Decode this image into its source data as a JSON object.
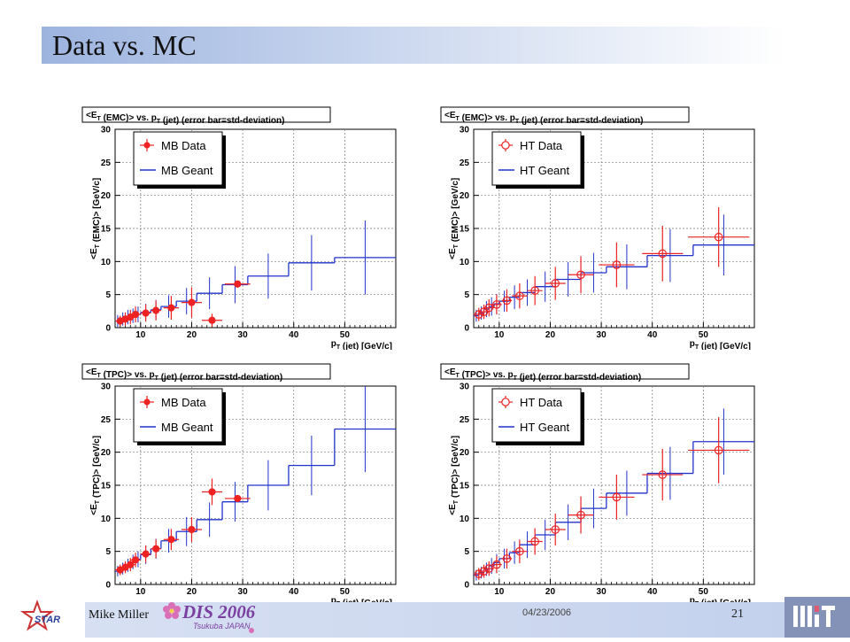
{
  "slide": {
    "title": "Data vs. MC",
    "author": "Mike Miller",
    "date": "04/23/2006",
    "page": "21",
    "conference_logo_text": "DIS 2006",
    "conference_logo_sub": "Tsukuba JAPAN",
    "star_logo_text": "STAR"
  },
  "colors": {
    "data": "#ee2222",
    "mc": "#2233cc",
    "grid": "#777777"
  },
  "chart_data": [
    {
      "type": "line",
      "title": "<E_T (EMC)> vs. p_T (jet) (error bar=std-deviation)",
      "ylabel": "<E_T (EMC)> [GeV/c]",
      "xlabel": "p_T (jet) [GeV/c]",
      "xlim": [
        5,
        60
      ],
      "ylim": [
        0,
        30
      ],
      "xticks": [
        10,
        20,
        30,
        40,
        50
      ],
      "yticks": [
        0,
        5,
        10,
        15,
        20,
        25,
        30
      ],
      "grid": true,
      "legend": "top-left",
      "series": [
        {
          "name": "MB Data",
          "kind": "points",
          "marker": "filled",
          "points": [
            {
              "x": 6,
              "y": 1.0,
              "ex": 1,
              "ey": 0.8
            },
            {
              "x": 7,
              "y": 1.3,
              "ex": 1,
              "ey": 1.0
            },
            {
              "x": 8,
              "y": 1.6,
              "ex": 1,
              "ey": 1.1
            },
            {
              "x": 9,
              "y": 2.0,
              "ex": 1,
              "ey": 1.2
            },
            {
              "x": 11,
              "y": 2.2,
              "ex": 1,
              "ey": 1.3
            },
            {
              "x": 13,
              "y": 2.6,
              "ex": 1,
              "ey": 1.5
            },
            {
              "x": 16,
              "y": 3.0,
              "ex": 1.5,
              "ey": 1.8
            },
            {
              "x": 20,
              "y": 3.8,
              "ex": 2,
              "ey": 2.3
            },
            {
              "x": 24,
              "y": 1.1,
              "ex": 2,
              "ey": 1.0
            },
            {
              "x": 29,
              "y": 6.6,
              "ex": 2.5,
              "ey": 0.4
            }
          ]
        },
        {
          "name": "MB Geant",
          "kind": "steps",
          "bins": [
            {
              "lo": 5,
              "hi": 6,
              "y": 1.0,
              "ey": 0.9
            },
            {
              "lo": 6,
              "hi": 7,
              "y": 1.3,
              "ey": 1.0
            },
            {
              "lo": 7,
              "hi": 8,
              "y": 1.6,
              "ey": 1.1
            },
            {
              "lo": 8,
              "hi": 9,
              "y": 1.8,
              "ey": 1.1
            },
            {
              "lo": 9,
              "hi": 10,
              "y": 2.0,
              "ey": 1.2
            },
            {
              "lo": 10,
              "hi": 12,
              "y": 2.3,
              "ey": 1.3
            },
            {
              "lo": 12,
              "hi": 14,
              "y": 2.7,
              "ey": 1.5
            },
            {
              "lo": 14,
              "hi": 17,
              "y": 3.2,
              "ey": 1.7
            },
            {
              "lo": 17,
              "hi": 21,
              "y": 4.0,
              "ey": 2.0
            },
            {
              "lo": 21,
              "hi": 26,
              "y": 5.2,
              "ey": 2.4
            },
            {
              "lo": 26,
              "hi": 31,
              "y": 6.5,
              "ey": 2.8
            },
            {
              "lo": 31,
              "hi": 39,
              "y": 7.8,
              "ey": 3.4
            },
            {
              "lo": 39,
              "hi": 48,
              "y": 9.8,
              "ey": 4.2
            },
            {
              "lo": 48,
              "hi": 60,
              "y": 10.6,
              "ey": 5.6
            }
          ]
        }
      ]
    },
    {
      "type": "line",
      "title": "<E_T (EMC)> vs. p_T (jet) (error bar=std-deviation)",
      "ylabel": "<E_T (EMC)> [GeV/c]",
      "xlabel": "p_T (jet) [GeV/c]",
      "xlim": [
        5,
        60
      ],
      "ylim": [
        0,
        30
      ],
      "xticks": [
        10,
        20,
        30,
        40,
        50
      ],
      "yticks": [
        0,
        5,
        10,
        15,
        20,
        25,
        30
      ],
      "grid": true,
      "legend": "top-left",
      "series": [
        {
          "name": "HT Data",
          "kind": "points",
          "marker": "open",
          "points": [
            {
              "x": 6,
              "y": 2.0,
              "ex": 1,
              "ey": 1.0
            },
            {
              "x": 7,
              "y": 2.4,
              "ex": 1,
              "ey": 1.1
            },
            {
              "x": 8,
              "y": 3.0,
              "ex": 1,
              "ey": 1.3
            },
            {
              "x": 9.5,
              "y": 3.5,
              "ex": 1,
              "ey": 1.5
            },
            {
              "x": 11.5,
              "y": 4.1,
              "ex": 1,
              "ey": 1.7
            },
            {
              "x": 14,
              "y": 4.8,
              "ex": 1.5,
              "ey": 1.9
            },
            {
              "x": 17,
              "y": 5.6,
              "ex": 1.5,
              "ey": 2.2
            },
            {
              "x": 21,
              "y": 6.7,
              "ex": 2,
              "ey": 2.5
            },
            {
              "x": 26,
              "y": 8.0,
              "ex": 2.5,
              "ey": 2.8
            },
            {
              "x": 33,
              "y": 9.5,
              "ex": 3.5,
              "ey": 3.4
            },
            {
              "x": 42,
              "y": 11.2,
              "ex": 4,
              "ey": 4.2
            },
            {
              "x": 53,
              "y": 13.7,
              "ex": 6,
              "ey": 4.5
            }
          ]
        },
        {
          "name": "HT Geant",
          "kind": "steps",
          "bins": [
            {
              "lo": 5,
              "hi": 6,
              "y": 1.8,
              "ey": 0.9
            },
            {
              "lo": 6,
              "hi": 7,
              "y": 2.2,
              "ey": 1.0
            },
            {
              "lo": 7,
              "hi": 8,
              "y": 2.8,
              "ey": 1.2
            },
            {
              "lo": 8,
              "hi": 9,
              "y": 3.2,
              "ey": 1.4
            },
            {
              "lo": 9,
              "hi": 10,
              "y": 3.6,
              "ey": 1.5
            },
            {
              "lo": 10,
              "hi": 12,
              "y": 4.0,
              "ey": 1.6
            },
            {
              "lo": 12,
              "hi": 14,
              "y": 4.6,
              "ey": 1.8
            },
            {
              "lo": 14,
              "hi": 17,
              "y": 5.3,
              "ey": 2.0
            },
            {
              "lo": 17,
              "hi": 21,
              "y": 6.2,
              "ey": 2.3
            },
            {
              "lo": 21,
              "hi": 26,
              "y": 7.3,
              "ey": 2.6
            },
            {
              "lo": 26,
              "hi": 31,
              "y": 8.3,
              "ey": 3.0
            },
            {
              "lo": 31,
              "hi": 39,
              "y": 9.2,
              "ey": 3.4
            },
            {
              "lo": 39,
              "hi": 48,
              "y": 10.9,
              "ey": 4.0
            },
            {
              "lo": 48,
              "hi": 60,
              "y": 12.5,
              "ey": 4.6
            }
          ]
        }
      ]
    },
    {
      "type": "line",
      "title": "<E_T (TPC)> vs. p_T (jet) (error bar=std-deviation)",
      "ylabel": "<E_T (TPC)> [GeV/c]",
      "xlabel": "p_T (jet) [GeV/c]",
      "xlim": [
        5,
        60
      ],
      "ylim": [
        0,
        30
      ],
      "xticks": [
        10,
        20,
        30,
        40,
        50
      ],
      "yticks": [
        0,
        5,
        10,
        15,
        20,
        25,
        30
      ],
      "grid": true,
      "legend": "top-left",
      "series": [
        {
          "name": "MB Data",
          "kind": "points",
          "marker": "filled",
          "points": [
            {
              "x": 6,
              "y": 2.2,
              "ex": 1,
              "ey": 0.8
            },
            {
              "x": 7,
              "y": 2.6,
              "ex": 1,
              "ey": 0.9
            },
            {
              "x": 8,
              "y": 3.0,
              "ex": 1,
              "ey": 1.0
            },
            {
              "x": 9,
              "y": 3.7,
              "ex": 1,
              "ey": 1.1
            },
            {
              "x": 11,
              "y": 4.6,
              "ex": 1,
              "ey": 1.3
            },
            {
              "x": 13,
              "y": 5.4,
              "ex": 1,
              "ey": 1.4
            },
            {
              "x": 16,
              "y": 6.8,
              "ex": 1.5,
              "ey": 1.6
            },
            {
              "x": 20,
              "y": 8.3,
              "ex": 2,
              "ey": 1.9
            },
            {
              "x": 24,
              "y": 14.0,
              "ex": 2,
              "ey": 2.0
            },
            {
              "x": 29,
              "y": 13.0,
              "ex": 2.5,
              "ey": 0.4
            }
          ]
        },
        {
          "name": "MB Geant",
          "kind": "steps",
          "bins": [
            {
              "lo": 5,
              "hi": 6,
              "y": 2.0,
              "ey": 0.8
            },
            {
              "lo": 6,
              "hi": 7,
              "y": 2.4,
              "ey": 0.9
            },
            {
              "lo": 7,
              "hi": 8,
              "y": 2.9,
              "ey": 1.0
            },
            {
              "lo": 8,
              "hi": 9,
              "y": 3.4,
              "ey": 1.1
            },
            {
              "lo": 9,
              "hi": 10,
              "y": 3.8,
              "ey": 1.2
            },
            {
              "lo": 10,
              "hi": 12,
              "y": 4.5,
              "ey": 1.4
            },
            {
              "lo": 12,
              "hi": 14,
              "y": 5.4,
              "ey": 1.5
            },
            {
              "lo": 14,
              "hi": 17,
              "y": 6.6,
              "ey": 1.8
            },
            {
              "lo": 17,
              "hi": 21,
              "y": 8.0,
              "ey": 2.2
            },
            {
              "lo": 21,
              "hi": 26,
              "y": 9.8,
              "ey": 2.6
            },
            {
              "lo": 26,
              "hi": 31,
              "y": 12.5,
              "ey": 3.0
            },
            {
              "lo": 31,
              "hi": 39,
              "y": 15.0,
              "ey": 3.8
            },
            {
              "lo": 39,
              "hi": 48,
              "y": 18.0,
              "ey": 4.5
            },
            {
              "lo": 48,
              "hi": 60,
              "y": 23.5,
              "ey": 6.5
            }
          ]
        }
      ]
    },
    {
      "type": "line",
      "title": "<E_T (TPC)> vs. p_T (jet) (error bar=std-deviation)",
      "ylabel": "<E_T (TPC)> [GeV/c]",
      "xlabel": "p_T (jet) [GeV/c]",
      "xlim": [
        5,
        60
      ],
      "ylim": [
        0,
        30
      ],
      "xticks": [
        10,
        20,
        30,
        40,
        50
      ],
      "yticks": [
        0,
        5,
        10,
        15,
        20,
        25,
        30
      ],
      "grid": true,
      "legend": "top-left",
      "series": [
        {
          "name": "HT Data",
          "kind": "points",
          "marker": "open",
          "points": [
            {
              "x": 6,
              "y": 1.6,
              "ex": 1,
              "ey": 0.9
            },
            {
              "x": 7,
              "y": 2.0,
              "ex": 1,
              "ey": 1.0
            },
            {
              "x": 8,
              "y": 2.4,
              "ex": 1,
              "ey": 1.1
            },
            {
              "x": 9.5,
              "y": 3.0,
              "ex": 1,
              "ey": 1.3
            },
            {
              "x": 11.5,
              "y": 3.9,
              "ex": 1,
              "ey": 1.5
            },
            {
              "x": 14,
              "y": 5.0,
              "ex": 1.5,
              "ey": 1.8
            },
            {
              "x": 17,
              "y": 6.5,
              "ex": 1.5,
              "ey": 2.0
            },
            {
              "x": 21,
              "y": 8.3,
              "ex": 2,
              "ey": 2.4
            },
            {
              "x": 26,
              "y": 10.5,
              "ex": 2.5,
              "ey": 2.8
            },
            {
              "x": 33,
              "y": 13.2,
              "ex": 3.5,
              "ey": 3.4
            },
            {
              "x": 42,
              "y": 16.6,
              "ex": 4,
              "ey": 3.9
            },
            {
              "x": 53,
              "y": 20.3,
              "ex": 6,
              "ey": 5.0
            }
          ]
        },
        {
          "name": "HT Geant",
          "kind": "steps",
          "bins": [
            {
              "lo": 5,
              "hi": 6,
              "y": 1.4,
              "ey": 0.8
            },
            {
              "lo": 6,
              "hi": 7,
              "y": 1.8,
              "ey": 0.9
            },
            {
              "lo": 7,
              "hi": 8,
              "y": 2.3,
              "ey": 1.0
            },
            {
              "lo": 8,
              "hi": 9,
              "y": 2.8,
              "ey": 1.2
            },
            {
              "lo": 9,
              "hi": 10,
              "y": 3.3,
              "ey": 1.3
            },
            {
              "lo": 10,
              "hi": 12,
              "y": 3.9,
              "ey": 1.5
            },
            {
              "lo": 12,
              "hi": 14,
              "y": 4.8,
              "ey": 1.7
            },
            {
              "lo": 14,
              "hi": 17,
              "y": 6.0,
              "ey": 2.0
            },
            {
              "lo": 17,
              "hi": 21,
              "y": 7.5,
              "ey": 2.3
            },
            {
              "lo": 21,
              "hi": 26,
              "y": 9.4,
              "ey": 2.7
            },
            {
              "lo": 26,
              "hi": 31,
              "y": 11.5,
              "ey": 3.0
            },
            {
              "lo": 31,
              "hi": 39,
              "y": 13.8,
              "ey": 3.4
            },
            {
              "lo": 39,
              "hi": 48,
              "y": 16.8,
              "ey": 4.0
            },
            {
              "lo": 48,
              "hi": 60,
              "y": 21.6,
              "ey": 5.0
            }
          ]
        }
      ]
    }
  ]
}
